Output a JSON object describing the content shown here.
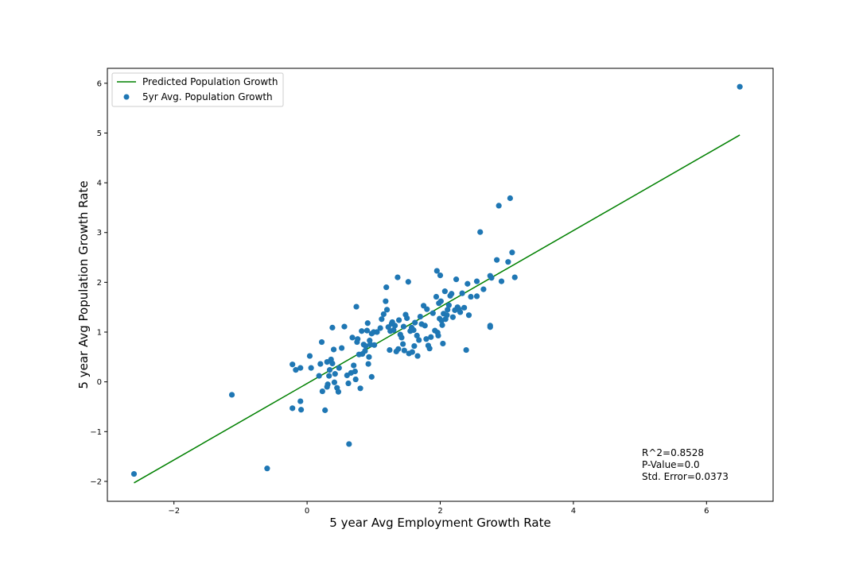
{
  "chart_data": {
    "type": "scatter",
    "title": "",
    "xlabel": "5 year Avg Employment Growth Rate",
    "ylabel": "5 year Avg Population Growth Rate",
    "xlim": [
      -3.0,
      7.0
    ],
    "ylim": [
      -2.4,
      6.3
    ],
    "x_ticks": [
      -2,
      0,
      2,
      4,
      6
    ],
    "y_ticks": [
      -2,
      -1,
      0,
      1,
      2,
      3,
      4,
      5,
      6
    ],
    "x_tick_labels": [
      "−2",
      "0",
      "2",
      "4",
      "6"
    ],
    "y_tick_labels": [
      "−2",
      "−1",
      "0",
      "1",
      "2",
      "3",
      "4",
      "5",
      "6"
    ],
    "grid": false,
    "legend_placement": "upper-left",
    "colors": {
      "scatter": "#1f77b4",
      "regression": "#008000"
    },
    "regression_line": {
      "name": "Predicted Population Growth",
      "x": [
        -2.6,
        6.5
      ],
      "y": [
        -2.03,
        4.96
      ]
    },
    "series": [
      {
        "name": "5yr Avg. Population Growth",
        "points": [
          [
            -2.6,
            -1.85
          ],
          [
            -1.13,
            -0.26
          ],
          [
            -0.6,
            -1.74
          ],
          [
            -0.22,
            0.35
          ],
          [
            -0.17,
            0.24
          ],
          [
            -0.1,
            0.28
          ],
          [
            -0.22,
            -0.53
          ],
          [
            -0.09,
            -0.56
          ],
          [
            -0.1,
            -0.39
          ],
          [
            0.06,
            0.28
          ],
          [
            0.04,
            0.52
          ],
          [
            0.18,
            0.12
          ],
          [
            0.2,
            0.36
          ],
          [
            0.22,
            0.8
          ],
          [
            0.23,
            -0.19
          ],
          [
            0.27,
            -0.57
          ],
          [
            0.3,
            -0.1
          ],
          [
            0.3,
            0.4
          ],
          [
            0.31,
            -0.05
          ],
          [
            0.33,
            0.12
          ],
          [
            0.34,
            0.24
          ],
          [
            0.36,
            0.45
          ],
          [
            0.38,
            0.37
          ],
          [
            0.38,
            1.09
          ],
          [
            0.4,
            0.65
          ],
          [
            0.41,
            -0.01
          ],
          [
            0.42,
            0.16
          ],
          [
            0.45,
            -0.12
          ],
          [
            0.47,
            -0.2
          ],
          [
            0.48,
            0.28
          ],
          [
            0.52,
            0.68
          ],
          [
            0.56,
            1.11
          ],
          [
            0.6,
            0.13
          ],
          [
            0.62,
            -0.03
          ],
          [
            0.63,
            -1.25
          ],
          [
            0.66,
            0.18
          ],
          [
            0.68,
            0.89
          ],
          [
            0.7,
            0.33
          ],
          [
            0.72,
            0.21
          ],
          [
            0.73,
            0.05
          ],
          [
            0.74,
            1.51
          ],
          [
            0.75,
            0.8
          ],
          [
            0.76,
            0.86
          ],
          [
            0.78,
            0.55
          ],
          [
            0.8,
            -0.13
          ],
          [
            0.82,
            1.02
          ],
          [
            0.83,
            0.56
          ],
          [
            0.85,
            0.75
          ],
          [
            0.87,
            0.62
          ],
          [
            0.88,
            0.72
          ],
          [
            0.9,
            1.03
          ],
          [
            0.91,
            1.18
          ],
          [
            0.92,
            0.36
          ],
          [
            0.93,
            0.5
          ],
          [
            0.94,
            0.83
          ],
          [
            0.95,
            0.75
          ],
          [
            0.97,
            0.1
          ],
          [
            0.97,
            0.97
          ],
          [
            1.0,
            1.0
          ],
          [
            1.01,
            0.74
          ],
          [
            1.05,
            1.0
          ],
          [
            1.1,
            1.08
          ],
          [
            1.12,
            1.26
          ],
          [
            1.15,
            1.36
          ],
          [
            1.18,
            1.62
          ],
          [
            1.19,
            1.9
          ],
          [
            1.2,
            1.45
          ],
          [
            1.22,
            1.1
          ],
          [
            1.24,
            0.64
          ],
          [
            1.25,
            1.02
          ],
          [
            1.27,
            1.17
          ],
          [
            1.28,
            1.2
          ],
          [
            1.3,
            1.04
          ],
          [
            1.32,
            1.13
          ],
          [
            1.34,
            0.61
          ],
          [
            1.36,
            2.1
          ],
          [
            1.37,
            0.66
          ],
          [
            1.38,
            1.24
          ],
          [
            1.4,
            0.95
          ],
          [
            1.42,
            0.89
          ],
          [
            1.44,
            0.76
          ],
          [
            1.45,
            1.11
          ],
          [
            1.46,
            0.63
          ],
          [
            1.48,
            1.35
          ],
          [
            1.5,
            1.28
          ],
          [
            1.52,
            2.01
          ],
          [
            1.53,
            0.57
          ],
          [
            1.55,
            1.02
          ],
          [
            1.57,
            1.09
          ],
          [
            1.58,
            0.6
          ],
          [
            1.6,
            1.04
          ],
          [
            1.61,
            0.72
          ],
          [
            1.62,
            1.19
          ],
          [
            1.65,
            0.93
          ],
          [
            1.66,
            0.52
          ],
          [
            1.68,
            0.84
          ],
          [
            1.7,
            1.31
          ],
          [
            1.72,
            1.16
          ],
          [
            1.75,
            1.53
          ],
          [
            1.77,
            1.13
          ],
          [
            1.79,
            0.86
          ],
          [
            1.8,
            1.46
          ],
          [
            1.82,
            0.73
          ],
          [
            1.84,
            0.67
          ],
          [
            1.86,
            0.9
          ],
          [
            1.89,
            1.38
          ],
          [
            1.92,
            1.03
          ],
          [
            1.94,
            1.71
          ],
          [
            1.95,
            2.23
          ],
          [
            1.96,
            0.99
          ],
          [
            1.97,
            0.93
          ],
          [
            1.98,
            1.58
          ],
          [
            1.99,
            1.27
          ],
          [
            2.0,
            2.14
          ],
          [
            2.01,
            1.62
          ],
          [
            2.02,
            1.23
          ],
          [
            2.03,
            1.14
          ],
          [
            2.04,
            0.77
          ],
          [
            2.05,
            1.37
          ],
          [
            2.07,
            1.82
          ],
          [
            2.08,
            1.26
          ],
          [
            2.1,
            1.34
          ],
          [
            2.11,
            1.45
          ],
          [
            2.13,
            1.54
          ],
          [
            2.15,
            1.73
          ],
          [
            2.17,
            1.77
          ],
          [
            2.19,
            1.3
          ],
          [
            2.22,
            1.44
          ],
          [
            2.24,
            2.06
          ],
          [
            2.26,
            1.5
          ],
          [
            2.28,
            1.46
          ],
          [
            2.3,
            1.4
          ],
          [
            2.33,
            1.78
          ],
          [
            2.36,
            1.49
          ],
          [
            2.39,
            0.64
          ],
          [
            2.41,
            1.97
          ],
          [
            2.43,
            1.34
          ],
          [
            2.46,
            1.71
          ],
          [
            2.55,
            2.02
          ],
          [
            2.55,
            1.72
          ],
          [
            2.6,
            3.01
          ],
          [
            2.65,
            1.86
          ],
          [
            2.75,
            1.1
          ],
          [
            2.75,
            1.13
          ],
          [
            2.75,
            2.13
          ],
          [
            2.77,
            2.09
          ],
          [
            2.85,
            2.45
          ],
          [
            2.88,
            3.54
          ],
          [
            2.92,
            2.02
          ],
          [
            3.02,
            2.41
          ],
          [
            3.05,
            3.69
          ],
          [
            3.08,
            2.6
          ],
          [
            3.12,
            2.1
          ],
          [
            6.5,
            5.93
          ]
        ]
      }
    ],
    "annotations": [
      "R^2=0.8528",
      "P-Value=0.0",
      "Std. Error=0.0373"
    ]
  }
}
